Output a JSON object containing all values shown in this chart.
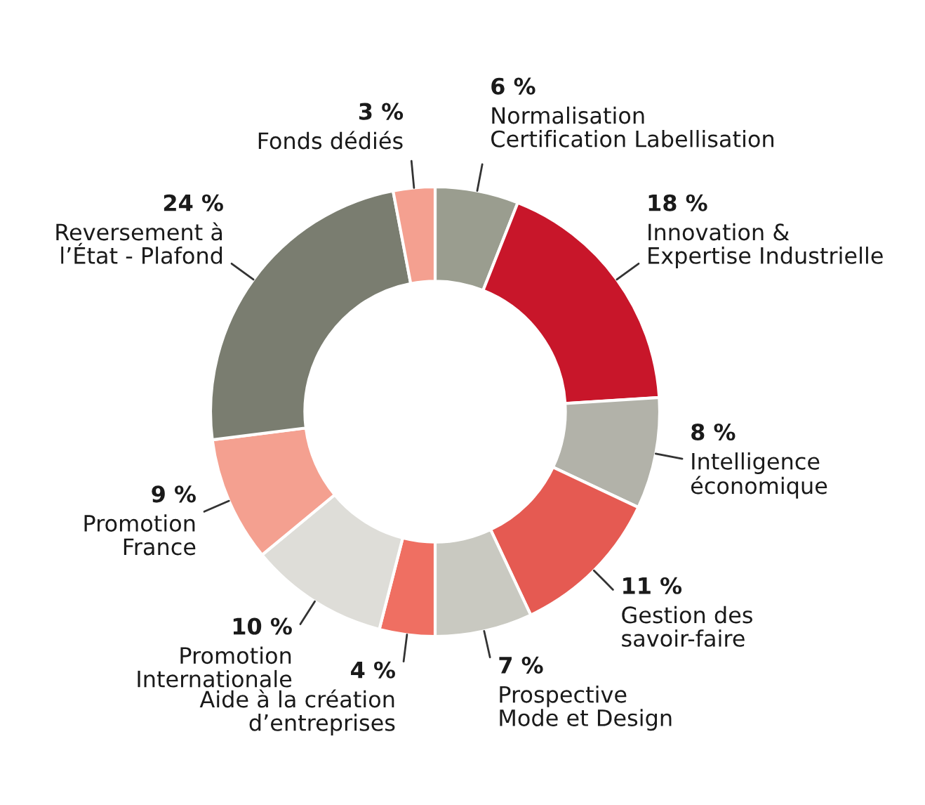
{
  "chart_data": {
    "type": "donut",
    "categories": [
      "Normalisation\nCertification Labellisation",
      "Innovation &\nExpertise Industrielle",
      "Intelligence\néconomique",
      "Gestion des\nsavoir-faire",
      "Prospective\nMode et Design",
      "Aide à la création\nd’entreprises",
      "Promotion\nInternationale",
      "Promotion\nFrance",
      "Reversement à\nl’État - Plafond",
      "Fonds dédiés"
    ],
    "values": [
      6,
      18,
      8,
      11,
      7,
      4,
      10,
      9,
      24,
      3
    ],
    "value_labels": [
      "6 %",
      "18 %",
      "8 %",
      "11 %",
      "7 %",
      "4 %",
      "10 %",
      "9 %",
      "24 %",
      "3 %"
    ],
    "colors": [
      "#9a9d8f",
      "#c8162a",
      "#b2b2a9",
      "#e55a52",
      "#c9c9c1",
      "#ef6f62",
      "#deddd8",
      "#f4a090",
      "#7a7d70",
      "#f4a090"
    ],
    "legend": false
  }
}
